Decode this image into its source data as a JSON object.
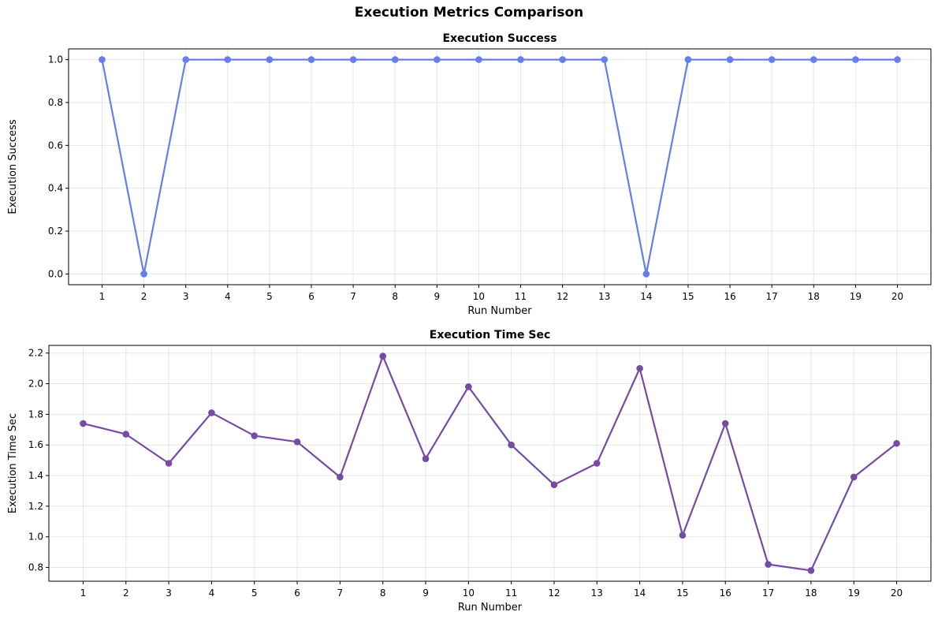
{
  "figure_title": "Execution Metrics Comparison",
  "chart_data": [
    {
      "type": "line",
      "title": "Execution Success",
      "xlabel": "Run Number",
      "ylabel": "Execution Success",
      "x": [
        1,
        2,
        3,
        4,
        5,
        6,
        7,
        8,
        9,
        10,
        11,
        12,
        13,
        14,
        15,
        16,
        17,
        18,
        19,
        20
      ],
      "series": [
        {
          "values": [
            1,
            0,
            1,
            1,
            1,
            1,
            1,
            1,
            1,
            1,
            1,
            1,
            1,
            0,
            1,
            1,
            1,
            1,
            1,
            1
          ],
          "color": "#667eea"
        }
      ],
      "xlim": [
        0.2,
        20.8
      ],
      "ylim": [
        -0.05,
        1.05
      ],
      "yticks": [
        0.0,
        0.2,
        0.4,
        0.6,
        0.8,
        1.0
      ],
      "ytick_labels": [
        "0.0",
        "0.2",
        "0.4",
        "0.6",
        "0.8",
        "1.0"
      ],
      "grid": true,
      "marker": "circle"
    },
    {
      "type": "line",
      "title": "Execution Time Sec",
      "xlabel": "Run Number",
      "ylabel": "Execution Time Sec",
      "x": [
        1,
        2,
        3,
        4,
        5,
        6,
        7,
        8,
        9,
        10,
        11,
        12,
        13,
        14,
        15,
        16,
        17,
        18,
        19,
        20
      ],
      "series": [
        {
          "values": [
            1.74,
            1.67,
            1.48,
            1.81,
            1.66,
            1.62,
            1.39,
            2.18,
            1.51,
            1.98,
            1.6,
            1.34,
            1.48,
            2.1,
            1.01,
            1.74,
            0.82,
            0.78,
            1.39,
            1.61
          ],
          "color": "#764ba2"
        }
      ],
      "xlim": [
        0.2,
        20.8
      ],
      "ylim": [
        0.71,
        2.25
      ],
      "yticks": [
        0.8,
        1.0,
        1.2,
        1.4,
        1.6,
        1.8,
        2.0,
        2.2
      ],
      "ytick_labels": [
        "0.8",
        "1.0",
        "1.2",
        "1.4",
        "1.6",
        "1.8",
        "2.0",
        "2.2"
      ],
      "grid": true,
      "marker": "circle"
    }
  ]
}
